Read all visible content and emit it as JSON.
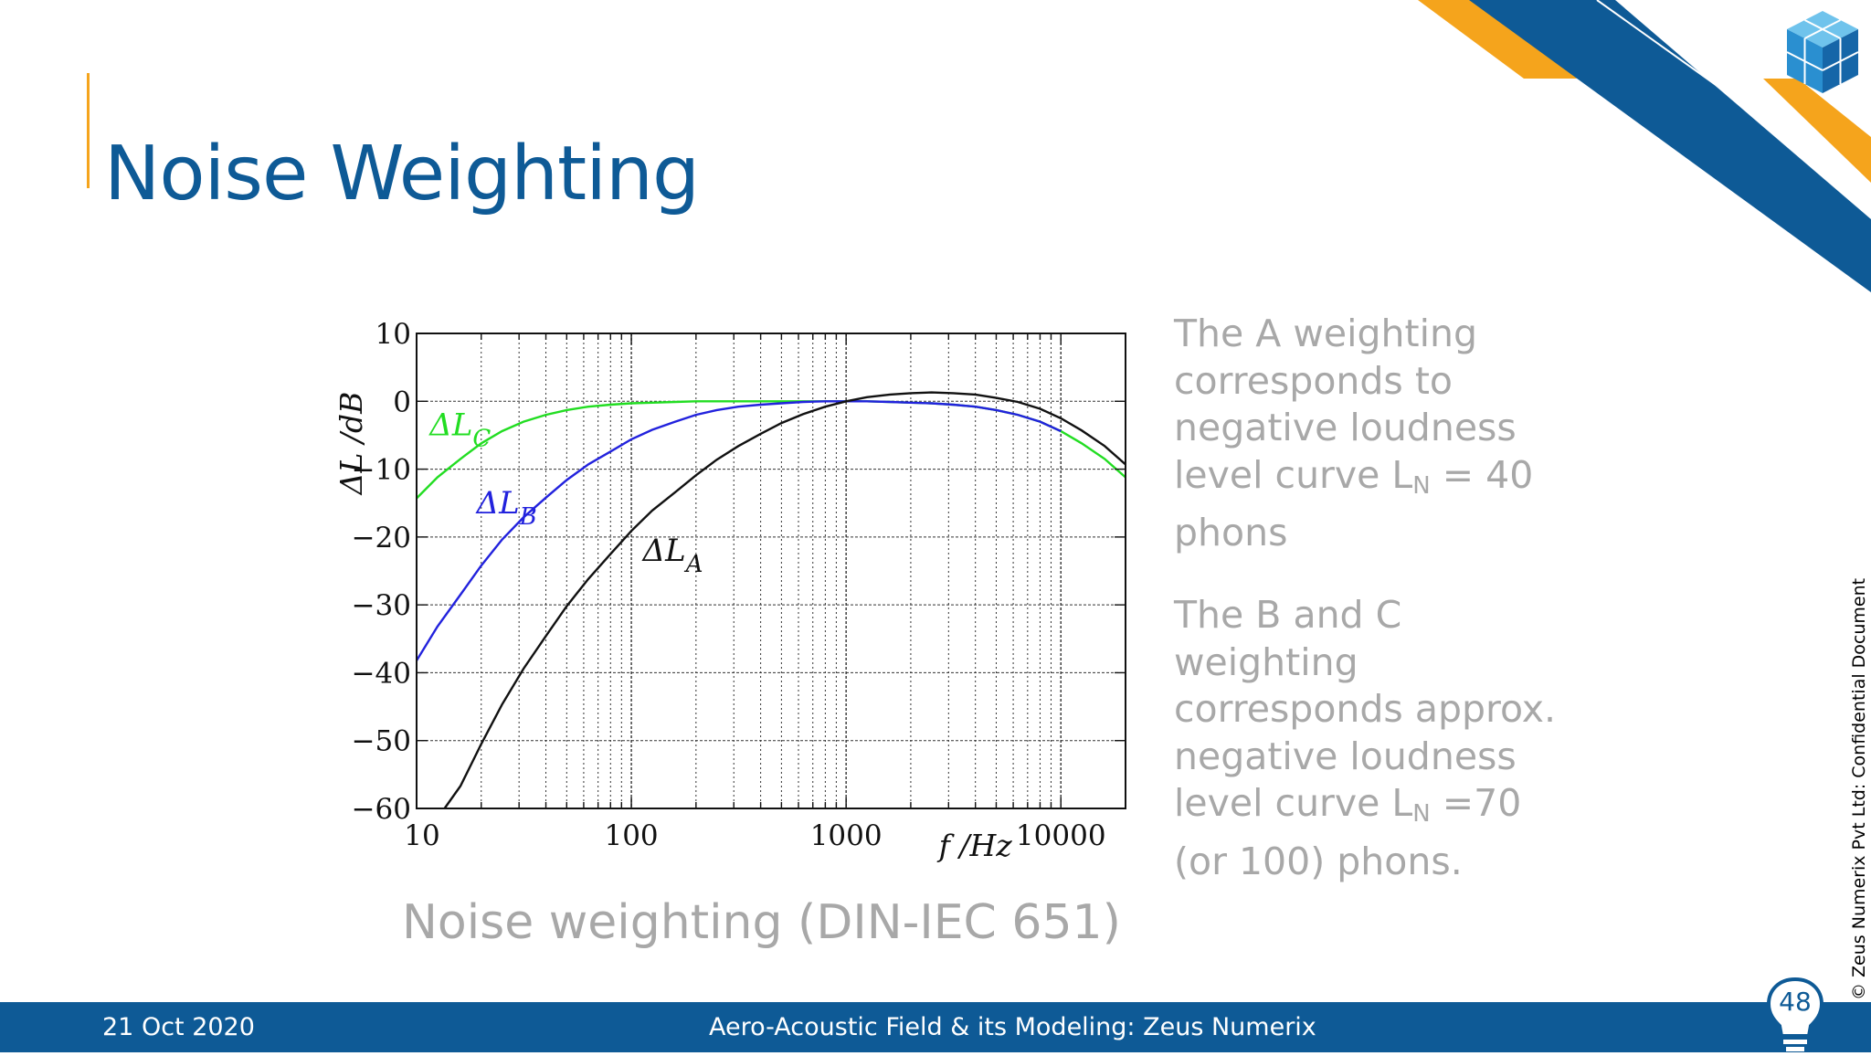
{
  "slide": {
    "title": "Noise Weighting",
    "caption": "Noise weighting (DIN-IEC 651)",
    "colors": {
      "primary": "#0e5a96",
      "accent": "#f5a41c",
      "muted_text": "#a8a8a8"
    }
  },
  "side_text": {
    "p1_line1": "The A weighting",
    "p1_line2": "corresponds to",
    "p1_line3": "negative loudness",
    "p1_line4_pre": "level curve L",
    "p1_line4_sub": "N",
    "p1_line4_post": " = 40",
    "p1_line5": "phons",
    "p2_line1": "The B and C",
    "p2_line2": "weighting",
    "p2_line3": "corresponds approx.",
    "p2_line4": "negative loudness",
    "p2_line5_pre": "level curve L",
    "p2_line5_sub": "N",
    "p2_line5_post": " =70",
    "p2_line6": "(or 100) phons."
  },
  "footer": {
    "date": "21 Oct 2020",
    "center_text": "Aero-Acoustic Field & its Modeling: Zeus Numerix",
    "page_number": "48",
    "vertical_note": "© Zeus Numerix Pvt Ltd: Confidential Document"
  },
  "icons": {
    "logo": "cube-logo-icon",
    "page_badge": "lightbulb-icon"
  },
  "chart_data": {
    "type": "line",
    "xscale": "log",
    "xlim": [
      10,
      20000
    ],
    "ylim": [
      -60,
      10
    ],
    "xticks": [
      10,
      100,
      1000,
      10000
    ],
    "xtick_labels": [
      "10",
      "100",
      "1000",
      "10000"
    ],
    "yticks": [
      10,
      0,
      -10,
      -20,
      -30,
      -40,
      -50,
      -60
    ],
    "ytick_labels": [
      "10",
      "0",
      "−10",
      "−20",
      "−30",
      "−40",
      "−50",
      "−60"
    ],
    "xlabel": "f /Hz",
    "ylabel": "ΔL /dB",
    "grid": true,
    "series": [
      {
        "name": "ΔL_C",
        "label_main": "ΔL",
        "label_sub": "C",
        "color": "#22dd22",
        "label_at": [
          11.5,
          -5
        ],
        "x": [
          10,
          12.5,
          16,
          20,
          25,
          31.5,
          40,
          50,
          63,
          80,
          100,
          125,
          160,
          200,
          250,
          315,
          400,
          500,
          630,
          800,
          1000,
          1250,
          1600,
          2000,
          2500,
          3150,
          4000,
          5000,
          6300,
          8000,
          10000,
          12500,
          16000,
          20000
        ],
        "y": [
          -14.3,
          -11.2,
          -8.5,
          -6.2,
          -4.4,
          -3.0,
          -2.0,
          -1.3,
          -0.8,
          -0.5,
          -0.3,
          -0.2,
          -0.1,
          0,
          0,
          0,
          0,
          0,
          0,
          0,
          0,
          0,
          -0.1,
          -0.2,
          -0.3,
          -0.5,
          -0.8,
          -1.3,
          -2.0,
          -3.0,
          -4.4,
          -6.2,
          -8.5,
          -11.2
        ]
      },
      {
        "name": "ΔL_B",
        "label_main": "ΔL",
        "label_sub": "B",
        "color": "#2222dd",
        "label_at": [
          19,
          -16.5
        ],
        "x": [
          10,
          12.5,
          16,
          20,
          25,
          31.5,
          40,
          50,
          63,
          80,
          100,
          125,
          160,
          200,
          250,
          315,
          400,
          500,
          630,
          800,
          1000,
          1250,
          1600,
          2000,
          2500,
          3150,
          4000,
          5000,
          6300,
          8000,
          10000
        ],
        "y": [
          -38.2,
          -33.2,
          -28.5,
          -24.2,
          -20.4,
          -17.1,
          -14.2,
          -11.6,
          -9.3,
          -7.4,
          -5.6,
          -4.2,
          -3.0,
          -2.0,
          -1.3,
          -0.8,
          -0.5,
          -0.3,
          -0.1,
          0,
          0,
          0,
          -0.1,
          -0.2,
          -0.3,
          -0.5,
          -0.8,
          -1.3,
          -2.0,
          -3.0,
          -4.4
        ]
      },
      {
        "name": "ΔL_A",
        "label_main": "ΔL",
        "label_sub": "A",
        "color": "#111111",
        "label_at": [
          113,
          -23.5
        ],
        "x": [
          13.5,
          16,
          20,
          25,
          31.5,
          40,
          50,
          63,
          80,
          100,
          125,
          160,
          200,
          250,
          315,
          400,
          500,
          630,
          800,
          1000,
          1250,
          1600,
          2000,
          2500,
          3150,
          4000,
          5000,
          6300,
          8000,
          10000,
          12500,
          16000,
          20000
        ],
        "y": [
          -60,
          -56.7,
          -50.5,
          -44.7,
          -39.4,
          -34.6,
          -30.2,
          -26.2,
          -22.5,
          -19.1,
          -16.1,
          -13.4,
          -10.9,
          -8.6,
          -6.6,
          -4.8,
          -3.2,
          -1.9,
          -0.8,
          0,
          0.6,
          1.0,
          1.2,
          1.3,
          1.2,
          1.0,
          0.5,
          -0.1,
          -1.1,
          -2.5,
          -4.3,
          -6.6,
          -9.3
        ]
      }
    ]
  }
}
